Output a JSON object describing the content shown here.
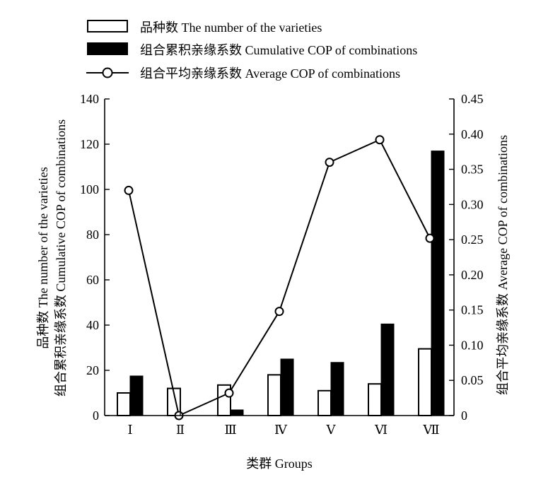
{
  "chart_data": {
    "type": "bar",
    "categories": [
      "Ⅰ",
      "Ⅱ",
      "Ⅲ",
      "Ⅳ",
      "Ⅴ",
      "Ⅵ",
      "Ⅶ"
    ],
    "series": [
      {
        "name": "品种数 The number of the varieties",
        "type": "bar",
        "axis": "left",
        "style": "hollow",
        "values": [
          10,
          12,
          13.5,
          18,
          11,
          14,
          29.5
        ]
      },
      {
        "name": "组合累积亲缘系数 Cumulative COP of combinations",
        "type": "bar",
        "axis": "left",
        "style": "filled",
        "values": [
          17.5,
          0,
          2.5,
          25,
          23.5,
          40.5,
          117
        ]
      },
      {
        "name": "组合平均亲缘系数 Average COP of combinations",
        "type": "line",
        "axis": "right",
        "style": "line-with-circle-markers",
        "values": [
          0.32,
          0.0,
          0.032,
          0.148,
          0.36,
          0.392,
          0.252
        ]
      }
    ],
    "xlabel": "类群 Groups",
    "ylabel_left": [
      "品种数 The number of the varieties",
      "组合累积亲缘系数 Cumulative COP of combinations"
    ],
    "ylabel_right": "组合平均亲缘系数 Average COP of combinations",
    "ylim_left": [
      0,
      140
    ],
    "yticks_left": [
      "0",
      "20",
      "40",
      "60",
      "80",
      "100",
      "120",
      "140"
    ],
    "ylim_right": [
      0,
      0.45
    ],
    "yticks_right": [
      "0",
      "0.05",
      "0.10",
      "0.15",
      "0.20",
      "0.25",
      "0.30",
      "0.35",
      "0.40",
      "0.45"
    ],
    "grid": false,
    "legend_position": "top-left"
  }
}
